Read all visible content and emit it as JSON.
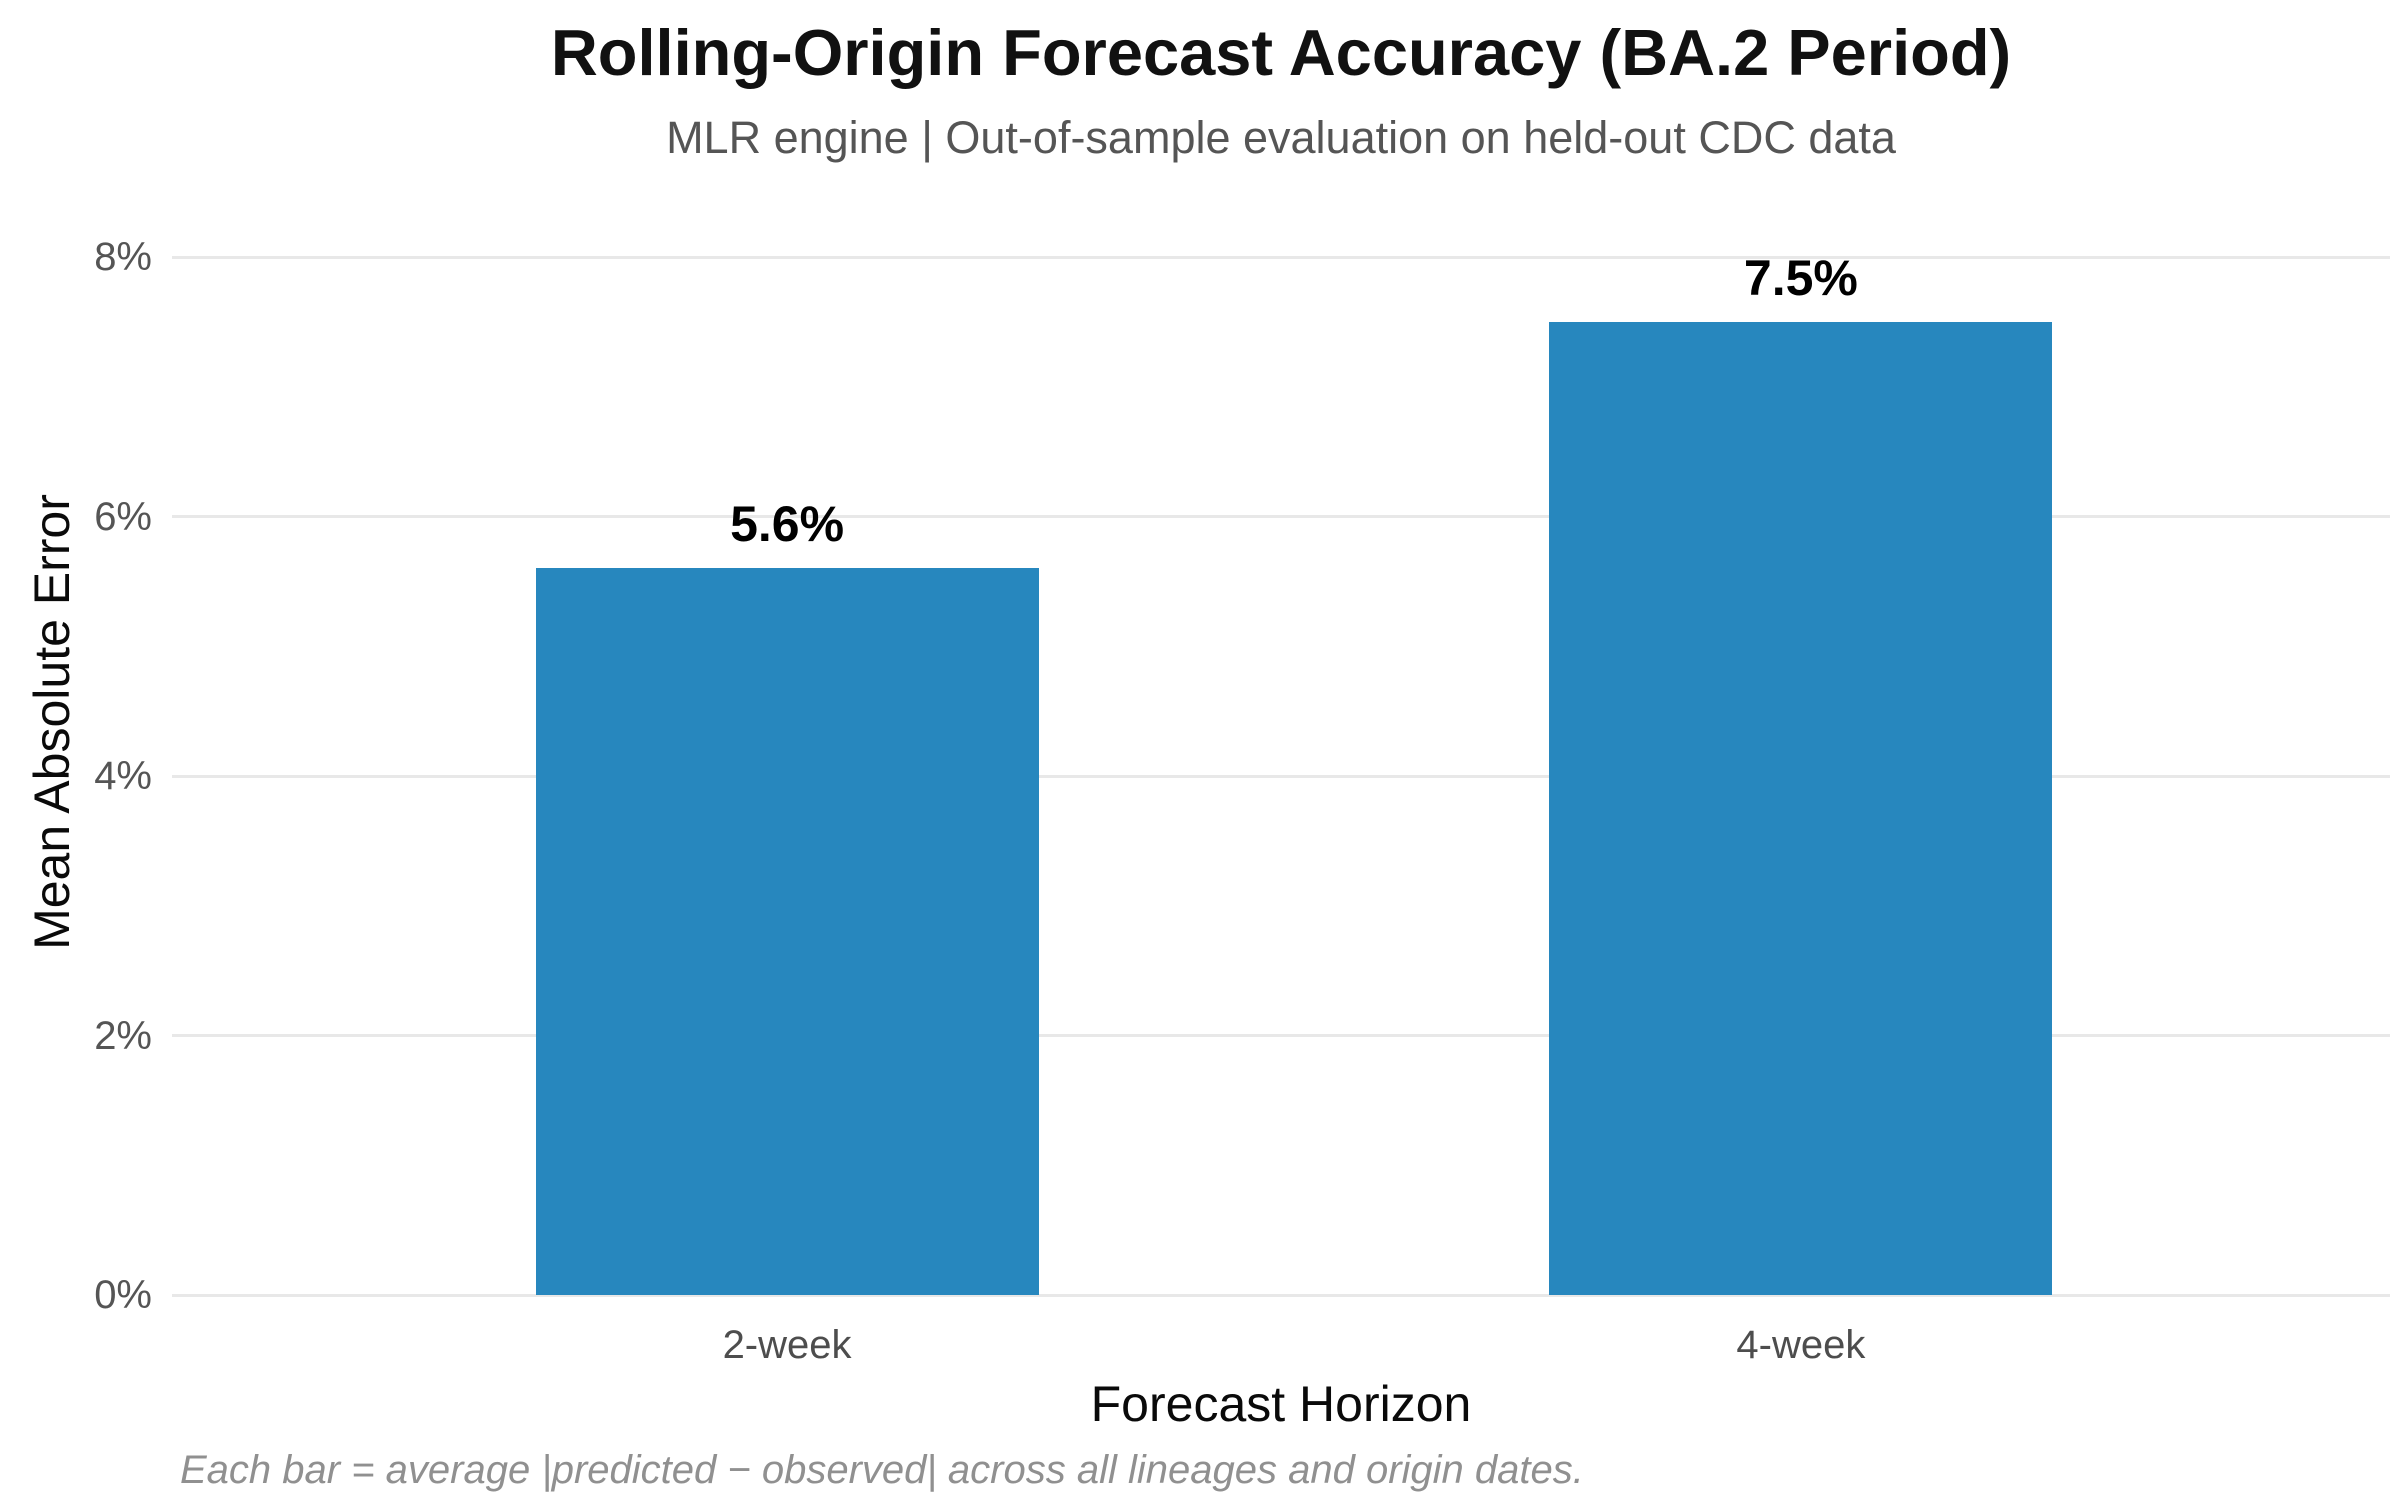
{
  "chart_data": {
    "type": "bar",
    "title": "Rolling-Origin Forecast Accuracy (BA.2 Period)",
    "subtitle": "MLR engine | Out-of-sample evaluation on held-out CDC data",
    "categories": [
      "2-week",
      "4-week"
    ],
    "values": [
      5.6,
      7.5
    ],
    "value_labels": [
      "5.6%",
      "7.5%"
    ],
    "xlabel": "Forecast Horizon",
    "ylabel": "Mean Absolute Error",
    "ylim": [
      0,
      8
    ],
    "yticks": [
      0,
      2,
      4,
      6,
      8
    ],
    "ytick_labels": [
      "0%",
      "2%",
      "4%",
      "6%",
      "8%"
    ],
    "grid": "horizontal",
    "legend": "none",
    "bar_color": "#2787be",
    "grid_color": "#e8e8e8",
    "background_color": "#ffffff",
    "footnote": "Each bar = average |predicted − observed| across all lineages and origin dates."
  }
}
